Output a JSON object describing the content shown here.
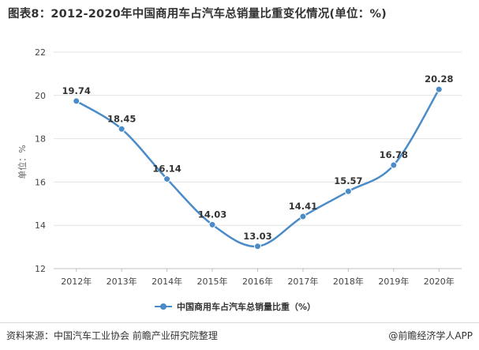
{
  "title": "图表8：2012-2020年中国商用车占汽车总销量比重变化情况(单位：%)",
  "source_text": "资料来源：中国汽车工业协会 前瞻产业研究院整理",
  "brand_text": "@前瞻经济学人APP",
  "colors": {
    "series": "#4a8bc8",
    "grid": "#e2e2e2",
    "axis": "#bfbfbf"
  },
  "chart_data": {
    "type": "line",
    "title": "图表8：2012-2020年中国商用车占汽车总销量比重变化情况(单位：%)",
    "xlabel": "",
    "ylabel": "单位：%",
    "categories": [
      "2012年",
      "2013年",
      "2014年",
      "2015年",
      "2016年",
      "2017年",
      "2018年",
      "2019年",
      "2020年"
    ],
    "series": [
      {
        "name": "中国商用车占汽车总销量比重（%）",
        "values": [
          19.74,
          18.45,
          16.14,
          14.03,
          13.03,
          14.41,
          15.57,
          16.78,
          20.28
        ]
      }
    ],
    "ylim": [
      12,
      22
    ],
    "yticks": [
      12,
      14,
      16,
      18,
      20,
      22
    ],
    "grid": true,
    "smooth": true,
    "legend": "bottom-center",
    "data_labels": true
  }
}
